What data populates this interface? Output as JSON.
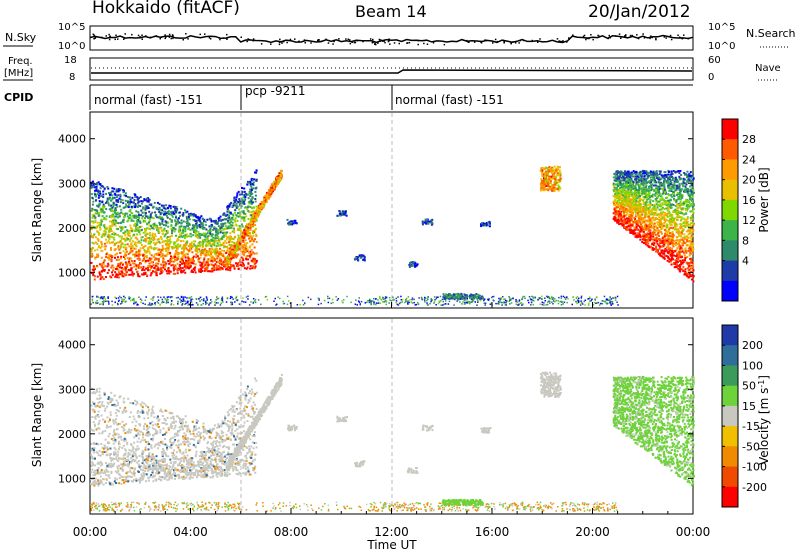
{
  "header": {
    "station": "Hokkaido (fitACF)",
    "beam": "Beam 14",
    "date": "20/Jan/2012"
  },
  "noise_panel": {
    "left_label": "N.Sky",
    "right_label": "N.Search",
    "left_ticks": [
      "10^5",
      "10^0"
    ],
    "right_ticks": [
      "10^5",
      "10^0"
    ]
  },
  "freq_panel": {
    "left_label_1": "Freq.",
    "left_label_2": "[MHz]",
    "right_label": "Nave",
    "left_ticks": [
      "18",
      "8"
    ],
    "right_ticks": [
      "60",
      "0"
    ]
  },
  "cpid_panel": {
    "label": "CPID",
    "segments": [
      {
        "name": "normal (fast) -151",
        "start_hour": 0
      },
      {
        "name": "pcp -9211",
        "start_hour": 6
      },
      {
        "name": "normal (fast) -151",
        "start_hour": 12
      }
    ]
  },
  "chart_data": [
    {
      "type": "heatmap",
      "title": "",
      "xlabel": "",
      "ylabel": "Slant Range [km]",
      "xlim_hours": [
        0,
        24
      ],
      "ylim": [
        200,
        4600
      ],
      "yticks": [
        1000,
        2000,
        3000,
        4000
      ],
      "colorbar": {
        "label": "Power [dB]",
        "ticks": [
          "28",
          "24",
          "20",
          "16",
          "12",
          "8",
          "4"
        ],
        "colors": [
          "#ff0000",
          "#ff5a00",
          "#ff9a00",
          "#e8c000",
          "#7fd800",
          "#3cb44a",
          "#2d8a6a",
          "#1e3ca8",
          "#0000ff"
        ]
      }
    },
    {
      "type": "heatmap",
      "title": "",
      "xlabel": "Time UT",
      "ylabel": "Slant Range [km]",
      "xlim_hours": [
        0,
        24
      ],
      "ylim": [
        200,
        4600
      ],
      "yticks": [
        1000,
        2000,
        3000,
        4000
      ],
      "xticks": [
        "00:00",
        "04:00",
        "08:00",
        "12:00",
        "16:00",
        "20:00",
        "00:00"
      ],
      "colorbar": {
        "label": "Velocity [m s",
        "label_sup": "-1",
        "label_end": "]",
        "ticks": [
          "200",
          "100",
          "50",
          "15",
          "-15",
          "-50",
          "-100",
          "-200"
        ],
        "colors": [
          "#1f3aa8",
          "#2f6e9a",
          "#3a9b5a",
          "#6ed23a",
          "#c8c8c0",
          "#f0c000",
          "#f08a00",
          "#f04a00",
          "#ff0000"
        ]
      }
    }
  ]
}
